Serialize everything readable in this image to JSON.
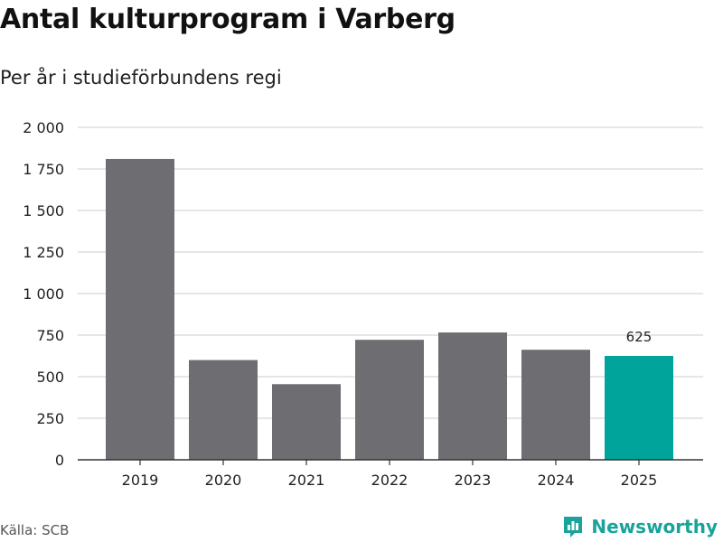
{
  "header": {
    "title": "Antal kulturprogram i Varberg",
    "subtitle": "Per år i studieförbundens regi"
  },
  "footer": {
    "source": "Källa: SCB",
    "brand": "Newsworthy",
    "brand_icon": "newsworthy-logo-icon"
  },
  "colors": {
    "bar": "#6e6d72",
    "highlight": "#00a49a",
    "grid": "#dddddd",
    "axis": "#333333",
    "brand": "#1aa39c"
  },
  "chart_data": {
    "type": "bar",
    "title": "Antal kulturprogram i Varberg",
    "subtitle": "Per år i studieförbundens regi",
    "xlabel": "",
    "ylabel": "",
    "categories": [
      "2019",
      "2020",
      "2021",
      "2022",
      "2023",
      "2024",
      "2025"
    ],
    "values": [
      1810,
      600,
      455,
      722,
      766,
      662,
      625
    ],
    "highlight_index": 6,
    "data_labels": [
      {
        "index": 6,
        "text": "625"
      }
    ],
    "ylim": [
      0,
      2000
    ],
    "yticks": [
      0,
      250,
      500,
      750,
      1000,
      1250,
      1500,
      1750,
      2000
    ],
    "ytick_labels": [
      "0",
      "250",
      "500",
      "750",
      "1 000",
      "1 250",
      "1 500",
      "1 750",
      "2 000"
    ],
    "grid": true,
    "legend": "none"
  }
}
